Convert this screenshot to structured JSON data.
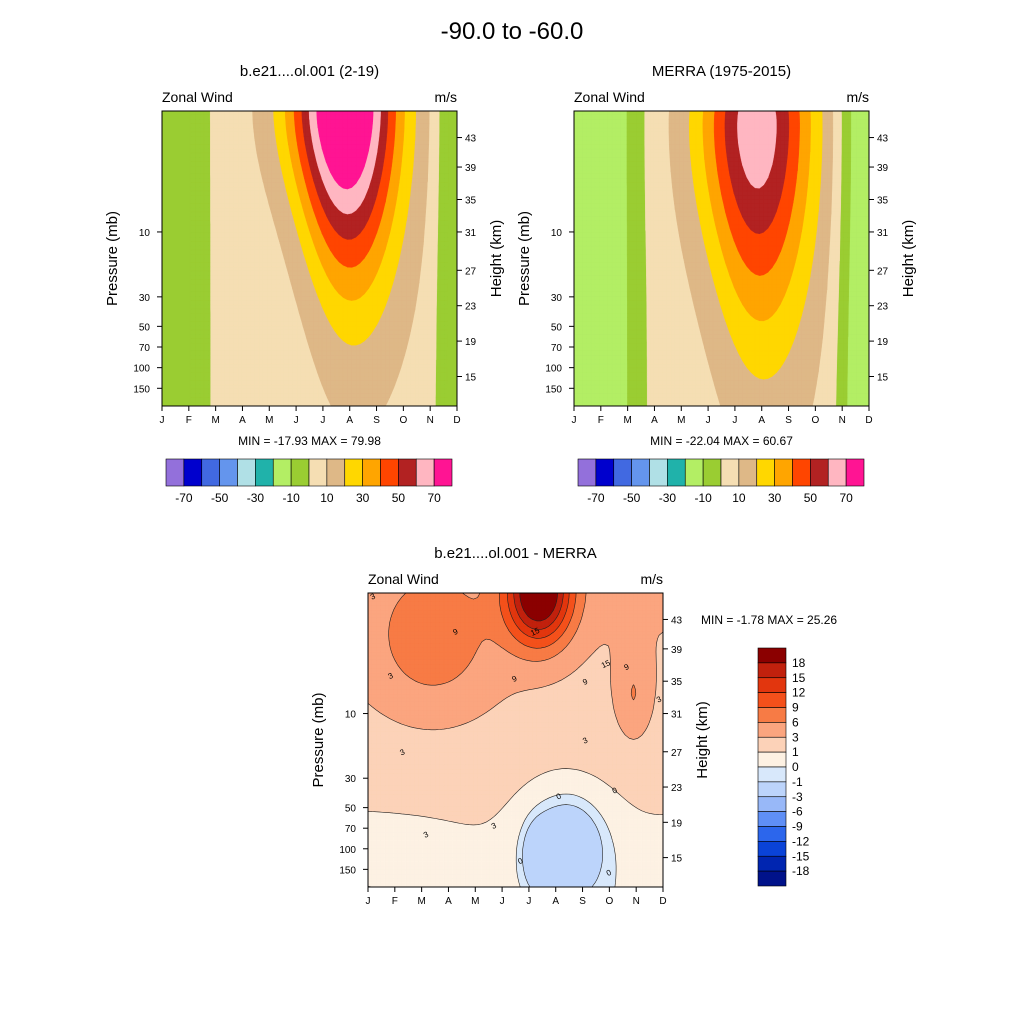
{
  "page_title": "-90.0 to -60.0",
  "chart_data": [
    {
      "type": "heatmap",
      "id": "model",
      "title": "b.e21....ol.001 (2-19)",
      "left_label": "Zonal Wind",
      "right_label": "m/s",
      "xlabel": "",
      "ylabel": "Pressure (mb)",
      "ylabel_right": "Height (km)",
      "x_ticks": [
        "J",
        "F",
        "M",
        "A",
        "M",
        "J",
        "J",
        "A",
        "S",
        "O",
        "N",
        "D"
      ],
      "y_ticks": [
        "10",
        "30",
        "50",
        "70",
        "100",
        "150"
      ],
      "y_ticks_right": [
        "43",
        "39",
        "35",
        "31",
        "27",
        "23",
        "19",
        "15"
      ],
      "stats": "MIN = -17.93  MAX =  79.98",
      "colorbar": {
        "levels": [
          -80,
          -70,
          -60,
          -50,
          -40,
          -30,
          -20,
          -10,
          0,
          10,
          20,
          30,
          40,
          50,
          60,
          70
        ],
        "labels": [
          "-70",
          "-50",
          "-30",
          "-10",
          "10",
          "30",
          "50",
          "70"
        ],
        "colors": [
          "#9370db",
          "#0000cd",
          "#4169e1",
          "#6495ed",
          "#b0e0e6",
          "#20b2aa",
          "#b3ee64",
          "#9acd32",
          "#f5deb3",
          "#deb887",
          "#ffd700",
          "#ffa500",
          "#ff4500",
          "#b22222",
          "#ffb6c1",
          "#ff1493"
        ]
      },
      "bands": [
        {
          "level": 0,
          "color": "#9acd32"
        },
        {
          "level": 10,
          "color": "#f5deb3"
        },
        {
          "level": 20,
          "color": "#deb887"
        },
        {
          "level": 30,
          "color": "#ffd700"
        },
        {
          "level": 40,
          "color": "#ffa500"
        },
        {
          "level": 50,
          "color": "#ff4500"
        },
        {
          "level": 60,
          "color": "#b22222"
        },
        {
          "level": 70,
          "color": "#ffb6c1"
        },
        {
          "level": 80,
          "color": "#ff1493"
        }
      ]
    },
    {
      "type": "heatmap",
      "id": "obs",
      "title": "MERRA (1975-2015)",
      "left_label": "Zonal Wind",
      "right_label": "m/s",
      "xlabel": "",
      "ylabel": "Pressure (mb)",
      "ylabel_right": "Height (km)",
      "x_ticks": [
        "J",
        "F",
        "M",
        "A",
        "M",
        "J",
        "J",
        "A",
        "S",
        "O",
        "N",
        "D"
      ],
      "y_ticks": [
        "10",
        "30",
        "50",
        "70",
        "100",
        "150"
      ],
      "y_ticks_right": [
        "43",
        "39",
        "35",
        "31",
        "27",
        "23",
        "19",
        "15"
      ],
      "stats": "MIN = -22.04  MAX =  60.67",
      "colorbar": {
        "levels": [
          -80,
          -70,
          -60,
          -50,
          -40,
          -30,
          -20,
          -10,
          0,
          10,
          20,
          30,
          40,
          50,
          60,
          70
        ],
        "labels": [
          "-70",
          "-50",
          "-30",
          "-10",
          "10",
          "30",
          "50",
          "70"
        ],
        "colors": [
          "#9370db",
          "#0000cd",
          "#4169e1",
          "#6495ed",
          "#b0e0e6",
          "#20b2aa",
          "#b3ee64",
          "#9acd32",
          "#f5deb3",
          "#deb887",
          "#ffd700",
          "#ffa500",
          "#ff4500",
          "#b22222",
          "#ffb6c1",
          "#ff1493"
        ]
      },
      "bands": [
        {
          "level": -10,
          "color": "#b3ee64"
        },
        {
          "level": 0,
          "color": "#9acd32"
        },
        {
          "level": 10,
          "color": "#f5deb3"
        },
        {
          "level": 20,
          "color": "#deb887"
        },
        {
          "level": 30,
          "color": "#ffd700"
        },
        {
          "level": 40,
          "color": "#ffa500"
        },
        {
          "level": 50,
          "color": "#ff4500"
        },
        {
          "level": 60,
          "color": "#b22222"
        },
        {
          "level": 70,
          "color": "#ffb6c1"
        }
      ]
    },
    {
      "type": "heatmap",
      "id": "diff",
      "title": "b.e21....ol.001 - MERRA",
      "left_label": "Zonal Wind",
      "right_label": "m/s",
      "xlabel": "",
      "ylabel": "Pressure (mb)",
      "ylabel_right": "Height (km)",
      "x_ticks": [
        "J",
        "F",
        "M",
        "A",
        "M",
        "J",
        "J",
        "A",
        "S",
        "O",
        "N",
        "D"
      ],
      "y_ticks": [
        "10",
        "30",
        "50",
        "70",
        "100",
        "150"
      ],
      "y_ticks_right": [
        "43",
        "39",
        "35",
        "31",
        "27",
        "23",
        "19",
        "15"
      ],
      "stats": "MIN =  -1.78  MAX =  25.26",
      "contour_labels": [
        "3",
        "3",
        "3",
        "3",
        "3",
        "9",
        "9",
        "9",
        "15",
        "15",
        "9",
        "0",
        "0",
        "0",
        "0",
        "3",
        "3"
      ],
      "colorbar": {
        "labels": [
          "18",
          "15",
          "12",
          "9",
          "6",
          "3",
          "1",
          "0",
          "-1",
          "-3",
          "-6",
          "-9",
          "-12",
          "-15",
          "-18"
        ],
        "colors": [
          "#8b0000",
          "#c1210d",
          "#e2360e",
          "#f4501b",
          "#f77b45",
          "#fba57f",
          "#fcd2b8",
          "#fdf1e3",
          "#d8e8fb",
          "#bcd4fb",
          "#98b8f8",
          "#5f8ff6",
          "#2c66ec",
          "#0a43d8",
          "#0025b0",
          "#00128a"
        ]
      },
      "bands": [
        {
          "level": 0,
          "color": "#d8e8fb"
        },
        {
          "level": 1,
          "color": "#fdf1e3"
        },
        {
          "level": 3,
          "color": "#fcd2b8"
        },
        {
          "level": 6,
          "color": "#fba57f"
        },
        {
          "level": 9,
          "color": "#f77b45"
        },
        {
          "level": 12,
          "color": "#f4501b"
        },
        {
          "level": 15,
          "color": "#e2360e"
        },
        {
          "level": 18,
          "color": "#c1210d"
        },
        {
          "level": 21,
          "color": "#8b0000"
        }
      ],
      "negative_band": {
        "level": -1,
        "color": "#bcd4fb"
      }
    }
  ]
}
